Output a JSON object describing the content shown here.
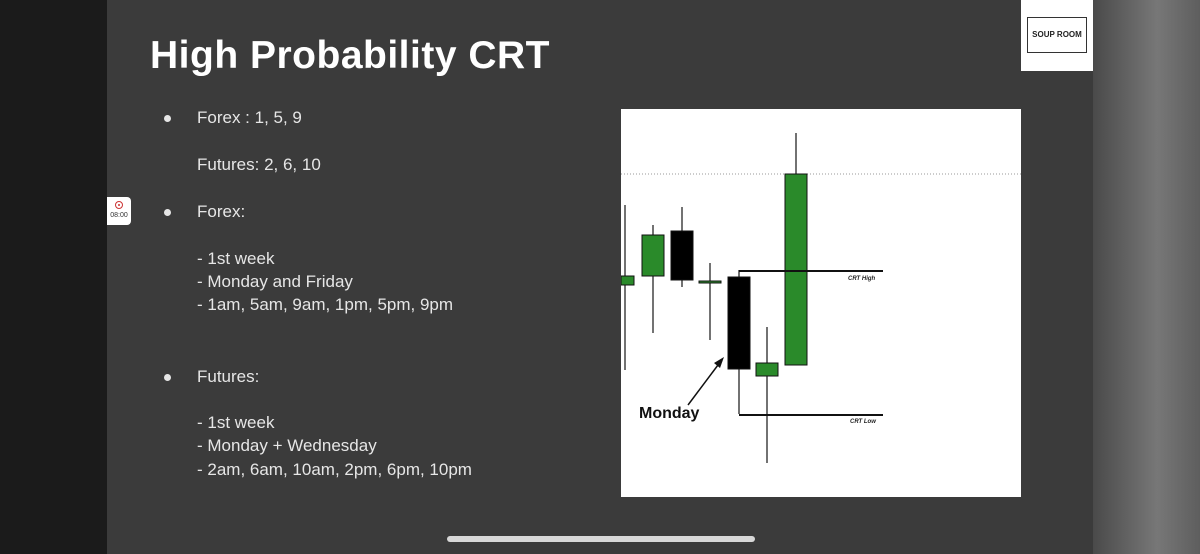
{
  "status": {
    "recording_time": "08:00"
  },
  "logo": {
    "text": "SOUP ROOM"
  },
  "slide": {
    "title": "High Probability CRT",
    "bullets": [
      {
        "heading": "Forex : 1, 5, 9",
        "lines": [
          "Futures: 2, 6, 10"
        ]
      },
      {
        "heading": "Forex:",
        "lines": [
          "- 1st week",
          "- Monday and Friday",
          "- 1am, 5am, 9am, 1pm, 5pm, 9pm"
        ]
      },
      {
        "heading": "Futures:",
        "lines": [
          "- 1st week",
          "- Monday + Wednesday",
          "- 2am, 6am, 10am, 2pm, 6pm, 10pm"
        ]
      }
    ],
    "diagram": {
      "annotation": "Monday",
      "high_label": "CRT High",
      "low_label": "CRT Low"
    }
  }
}
